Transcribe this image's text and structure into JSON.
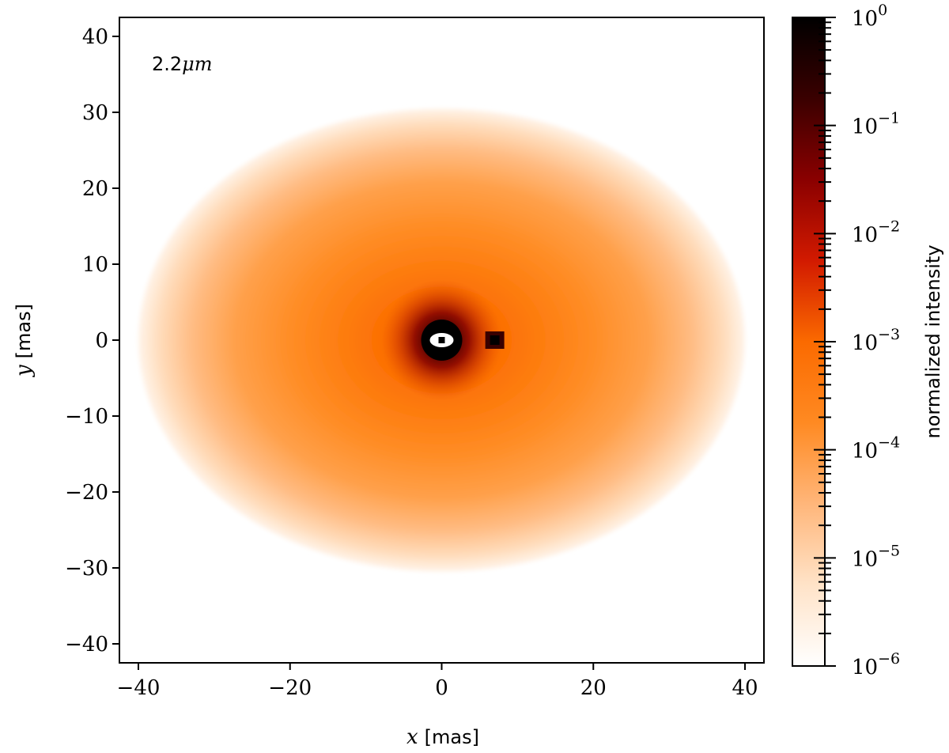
{
  "chart_data": {
    "type": "heatmap",
    "title": "",
    "annotation": "2.2",
    "annotation_unit": "μm",
    "xlabel": {
      "var": "x",
      "unit": "[mas]"
    },
    "ylabel": {
      "var": "y",
      "unit": "[mas]"
    },
    "xlim": [
      -42.5,
      42.5
    ],
    "ylim": [
      -42.5,
      42.5
    ],
    "xticks": [
      -40,
      -20,
      0,
      20,
      40
    ],
    "yticks": [
      40,
      30,
      20,
      10,
      0,
      -10,
      -20,
      -30,
      -40
    ],
    "xtick_labels": [
      "−40",
      "−20",
      "0",
      "20",
      "40"
    ],
    "ytick_labels": [
      "40",
      "30",
      "20",
      "10",
      "0",
      "−10",
      "−20",
      "−30",
      "−40"
    ],
    "colorbar": {
      "label": "normalized intensity",
      "scale": "log",
      "range": [
        1e-06,
        1
      ],
      "ticks": [
        {
          "value": 1,
          "base": "10",
          "exp": "0"
        },
        {
          "value": 0.1,
          "base": "10",
          "exp": "−1"
        },
        {
          "value": 0.01,
          "base": "10",
          "exp": "−2"
        },
        {
          "value": 0.001,
          "base": "10",
          "exp": "−3"
        },
        {
          "value": 0.0001,
          "base": "10",
          "exp": "−4"
        },
        {
          "value": 1e-05,
          "base": "10",
          "exp": "−5"
        },
        {
          "value": 1e-06,
          "base": "10",
          "exp": "−6"
        }
      ],
      "colormap": [
        "#ffffff",
        "#ffe3c8",
        "#ffb67a",
        "#ff8a22",
        "#fb6a00",
        "#d21a00",
        "#8a0000",
        "#3a0000",
        "#000000"
      ]
    },
    "features": {
      "envelope": {
        "center": [
          0,
          0
        ],
        "semi_axis_x": 40,
        "semi_axis_y": 30.5
      },
      "central_source": {
        "x": 0,
        "y": 0
      },
      "companion_source": {
        "x": 7,
        "y": 0
      }
    }
  }
}
